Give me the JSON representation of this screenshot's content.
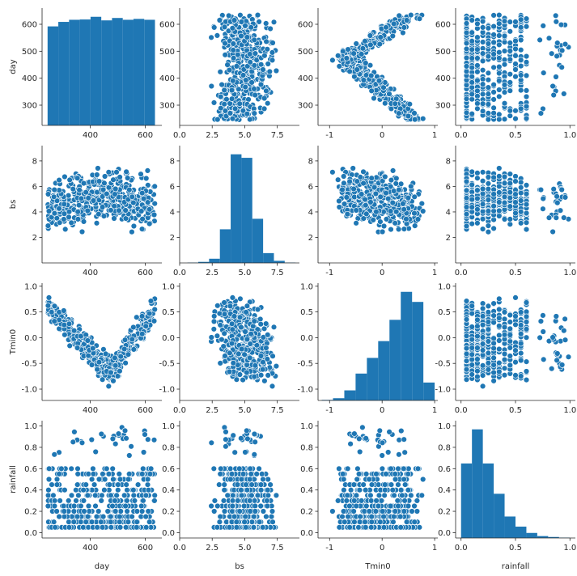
{
  "chart_data": {
    "type": "pairplot",
    "variables": [
      "day",
      "bs",
      "Tmin0",
      "rainfall"
    ],
    "axis_labels": {
      "left": [
        "day",
        "bs",
        "Tmin0",
        "rainfall"
      ],
      "bottom": [
        "day",
        "bs",
        "Tmin0",
        "rainfall"
      ]
    },
    "ranges": {
      "day": [
        225,
        660
      ],
      "bs": [
        0,
        9.2
      ],
      "Tmin0": [
        -1.22,
        1.06
      ],
      "rainfall": [
        -0.05,
        1.05
      ]
    },
    "ticks": {
      "day": [
        300,
        400,
        500,
        600
      ],
      "day_x": [
        400,
        600
      ],
      "bs": [
        2,
        4,
        6,
        8
      ],
      "bs_x": [
        0.0,
        2.5,
        5.0,
        7.5
      ],
      "Tmin0": [
        -1.0,
        -0.5,
        0.0,
        0.5,
        1.0
      ],
      "Tmin0_x": [
        -1,
        0,
        1
      ],
      "rainfall": [
        0.0,
        0.2,
        0.4,
        0.6,
        0.8,
        1.0
      ],
      "rainfall_x": [
        0.0,
        0.5,
        1.0
      ]
    },
    "tick_labels": {
      "day": [
        "300",
        "400",
        "500",
        "600"
      ],
      "day_x": [
        "400",
        "600"
      ],
      "bs": [
        "2",
        "4",
        "6",
        "8"
      ],
      "bs_x": [
        "0.0",
        "2.5",
        "5.0",
        "7.5"
      ],
      "Tmin0": [
        "-1.0",
        "-0.5",
        "0.0",
        "0.5",
        "1.0"
      ],
      "Tmin0_x": [
        "-1",
        "0",
        "1"
      ],
      "rainfall": [
        "0.0",
        "0.2",
        "0.4",
        "0.6",
        "0.8",
        "1.0"
      ],
      "rainfall_x": [
        "0.0",
        "0.5",
        "1.0"
      ]
    },
    "histograms": {
      "day": {
        "edges": [
          245,
          284,
          323,
          362,
          401,
          440,
          479,
          518,
          557,
          596,
          635
        ],
        "counts": [
          330,
          345,
          352,
          353,
          362,
          350,
          358,
          352,
          355,
          352
        ]
      },
      "bs": {
        "edges": [
          0.6,
          1.43,
          2.26,
          3.09,
          3.92,
          4.75,
          5.58,
          6.41,
          7.24,
          8.07,
          8.9
        ],
        "counts": [
          5,
          15,
          60,
          480,
          1550,
          1500,
          630,
          140,
          30,
          5
        ]
      },
      "Tmin0": {
        "edges": [
          -1.15,
          -0.935,
          -0.72,
          -0.505,
          -0.29,
          -0.075,
          0.14,
          0.355,
          0.57,
          0.785,
          1.0
        ],
        "counts": [
          5,
          20,
          90,
          240,
          380,
          530,
          720,
          970,
          880,
          160
        ]
      },
      "rainfall": {
        "edges": [
          0.0,
          0.1,
          0.2,
          0.3,
          0.4,
          0.5,
          0.6,
          0.7,
          0.8,
          0.9,
          1.0
        ],
        "counts": [
          590,
          860,
          590,
          350,
          170,
          90,
          40,
          15,
          8,
          3
        ]
      }
    },
    "colors": {
      "marker": "#1f77b4",
      "edge": "#ffffff",
      "hist": "#1f77b4"
    },
    "grid": false,
    "legend": "none"
  }
}
